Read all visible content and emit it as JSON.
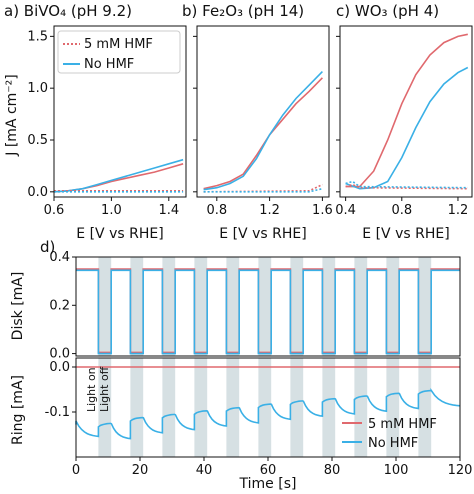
{
  "colors": {
    "hmf": "#e0696e",
    "nohmf": "#3ab0e6",
    "light_band": "#d6e0e3"
  },
  "chart_data": [
    {
      "type": "line",
      "panel": "a",
      "title": "a) BiVO₄ (pH 9.2)",
      "xlabel": "E [V vs RHE]",
      "ylabel": "J [mA cm⁻²]",
      "xlim": [
        0.6,
        1.52
      ],
      "ylim": [
        -0.05,
        1.6
      ],
      "xticks": [
        "0.6",
        "1.0",
        "1.4"
      ],
      "yticks": [
        "0.0",
        "0.5",
        "1.0",
        "1.5"
      ],
      "legend": {
        "placement": "top-left",
        "entries": [
          "5 mM HMF",
          "No HMF"
        ]
      },
      "series": [
        {
          "name": "5 mM HMF",
          "style": "solid",
          "x": [
            0.6,
            0.7,
            0.8,
            0.9,
            1.0,
            1.1,
            1.2,
            1.3,
            1.4,
            1.5
          ],
          "y": [
            0.0,
            0.01,
            0.03,
            0.06,
            0.1,
            0.13,
            0.16,
            0.19,
            0.23,
            0.27
          ]
        },
        {
          "name": "No HMF",
          "style": "solid",
          "x": [
            0.6,
            0.7,
            0.8,
            0.9,
            1.0,
            1.1,
            1.2,
            1.3,
            1.4,
            1.5
          ],
          "y": [
            0.0,
            0.01,
            0.03,
            0.07,
            0.11,
            0.15,
            0.19,
            0.23,
            0.27,
            0.31
          ]
        },
        {
          "name": "5 mM HMF (dark)",
          "style": "dotted",
          "x": [
            0.6,
            1.5
          ],
          "y": [
            0.01,
            0.01
          ]
        },
        {
          "name": "No HMF (dark)",
          "style": "dotted",
          "x": [
            0.6,
            1.5
          ],
          "y": [
            0.0,
            0.0
          ]
        }
      ]
    },
    {
      "type": "line",
      "panel": "b",
      "title": "b) Fe₂O₃ (pH 14)",
      "xlabel": "E [V vs RHE]",
      "xlim": [
        0.65,
        1.65
      ],
      "ylim": [
        -0.05,
        1.6
      ],
      "xticks": [
        "0.8",
        "1.2",
        "1.6"
      ],
      "series": [
        {
          "name": "5 mM HMF",
          "style": "solid",
          "x": [
            0.7,
            0.8,
            0.9,
            1.0,
            1.1,
            1.2,
            1.3,
            1.4,
            1.5,
            1.6
          ],
          "y": [
            0.03,
            0.06,
            0.1,
            0.17,
            0.35,
            0.55,
            0.7,
            0.85,
            0.97,
            1.1
          ]
        },
        {
          "name": "No HMF",
          "style": "solid",
          "x": [
            0.7,
            0.8,
            0.9,
            1.0,
            1.1,
            1.2,
            1.3,
            1.4,
            1.5,
            1.6
          ],
          "y": [
            0.02,
            0.04,
            0.08,
            0.15,
            0.32,
            0.55,
            0.74,
            0.9,
            1.03,
            1.16
          ]
        },
        {
          "name": "5 mM HMF (dark)",
          "style": "dotted",
          "x": [
            0.7,
            1.5,
            1.6
          ],
          "y": [
            0.0,
            0.01,
            0.07
          ]
        },
        {
          "name": "No HMF (dark)",
          "style": "dotted",
          "x": [
            0.7,
            1.5,
            1.6
          ],
          "y": [
            0.0,
            0.0,
            0.03
          ]
        }
      ]
    },
    {
      "type": "line",
      "panel": "c",
      "title": "c) WO₃ (pH 4)",
      "xlabel": "E [V vs RHE]",
      "xlim": [
        0.36,
        1.3
      ],
      "ylim": [
        -0.05,
        1.6
      ],
      "xticks": [
        "0.4",
        "0.8",
        "1.2"
      ],
      "series": [
        {
          "name": "5 mM HMF",
          "style": "solid",
          "x": [
            0.4,
            0.5,
            0.6,
            0.7,
            0.8,
            0.9,
            1.0,
            1.1,
            1.2,
            1.27
          ],
          "y": [
            0.05,
            0.05,
            0.2,
            0.5,
            0.85,
            1.13,
            1.32,
            1.44,
            1.5,
            1.52
          ]
        },
        {
          "name": "No HMF",
          "style": "solid",
          "x": [
            0.4,
            0.5,
            0.6,
            0.7,
            0.8,
            0.9,
            1.0,
            1.1,
            1.2,
            1.27
          ],
          "y": [
            0.08,
            0.03,
            0.04,
            0.1,
            0.33,
            0.62,
            0.87,
            1.04,
            1.15,
            1.2
          ]
        },
        {
          "name": "5 mM HMF (dark)",
          "style": "dotted",
          "x": [
            0.4,
            0.45,
            0.5,
            1.27
          ],
          "y": [
            0.05,
            0.07,
            0.04,
            0.03
          ]
        },
        {
          "name": "No HMF (dark)",
          "style": "dotted",
          "x": [
            0.4,
            0.45,
            0.5,
            1.27
          ],
          "y": [
            0.08,
            0.1,
            0.05,
            0.04
          ]
        }
      ]
    },
    {
      "type": "line",
      "panel": "d",
      "title": "d)",
      "subtitle": "Disk",
      "ylabel": "Disk [mA]",
      "xlim": [
        0,
        120
      ],
      "ylim": [
        -0.01,
        0.4
      ],
      "yticks": [
        "0.0",
        "0.2",
        "0.4"
      ],
      "light_off_intervals": [
        [
          7,
          11
        ],
        [
          17,
          21
        ],
        [
          27,
          31
        ],
        [
          37,
          41
        ],
        [
          47,
          51
        ],
        [
          57,
          61
        ],
        [
          67,
          71
        ],
        [
          77,
          81
        ],
        [
          87,
          91
        ],
        [
          97,
          101
        ],
        [
          107,
          111
        ]
      ],
      "series": [
        {
          "name": "5 mM HMF",
          "light_on": 0.35,
          "light_off": 0.005
        },
        {
          "name": "No HMF",
          "light_on": 0.345,
          "light_off": 0.0
        }
      ]
    },
    {
      "type": "line",
      "panel": "d",
      "subtitle": "Ring",
      "xlabel": "Time [s]",
      "ylabel": "Ring [mA]",
      "xlim": [
        0,
        120
      ],
      "ylim": [
        -0.2,
        0.02
      ],
      "xticks": [
        "0",
        "20",
        "40",
        "60",
        "80",
        "100",
        "120"
      ],
      "yticks": [
        "0.0",
        "-0.1"
      ],
      "annotations": [
        "Light on",
        "Light off"
      ],
      "legend": {
        "placement": "bottom-right",
        "entries": [
          "5 mM HMF",
          "No HMF"
        ]
      },
      "series": [
        {
          "name": "5 mM HMF",
          "value": 0.0
        },
        {
          "name": "No HMF",
          "off_levels": [
            -0.12,
            -0.125,
            -0.112,
            -0.105,
            -0.097,
            -0.09,
            -0.082,
            -0.075,
            -0.07,
            -0.064,
            -0.058,
            -0.052
          ],
          "on_drop": 0.04
        }
      ]
    }
  ]
}
